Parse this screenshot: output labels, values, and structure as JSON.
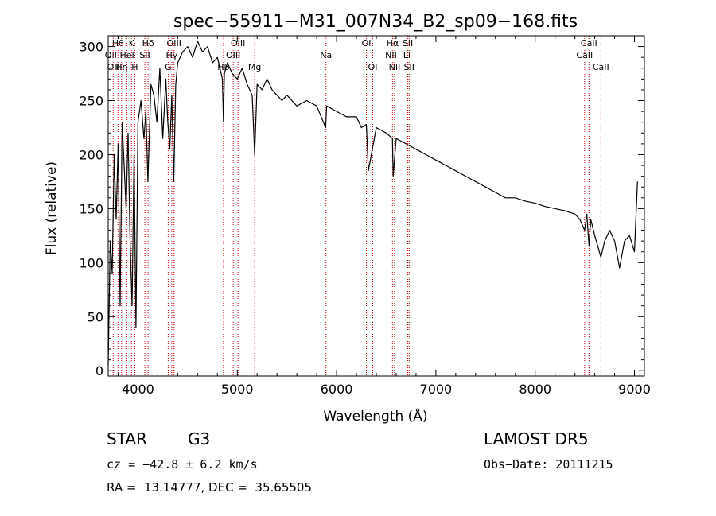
{
  "chart_data": {
    "type": "line",
    "title": "spec−55911−M31_007N34_B2_sp09−168.fits",
    "xlabel": "Wavelength (Å)",
    "ylabel": "Flux (relative)",
    "xlim": [
      3700,
      9100
    ],
    "ylim": [
      -5,
      310
    ],
    "x_ticks": [
      4000,
      5000,
      6000,
      7000,
      8000,
      9000
    ],
    "y_ticks": [
      0,
      50,
      100,
      150,
      200,
      250,
      300
    ],
    "grid": false,
    "line_color": "#000000",
    "marker_color": "#cc0000",
    "series": [
      {
        "x": [
          3700,
          3720,
          3740,
          3760,
          3780,
          3800,
          3820,
          3840,
          3860,
          3880,
          3900,
          3920,
          3940,
          3960,
          3980,
          4000,
          4030,
          4060,
          4080,
          4100,
          4130,
          4160,
          4190,
          4220,
          4250,
          4280,
          4300,
          4320,
          4340,
          4360,
          4380,
          4400,
          4450,
          4500,
          4550,
          4600,
          4650,
          4700,
          4750,
          4800,
          4850,
          4861,
          4870,
          4900,
          4950,
          5000,
          5050,
          5100,
          5150,
          5175,
          5200,
          5250,
          5300,
          5350,
          5400,
          5450,
          5500,
          5600,
          5700,
          5800,
          5890,
          5900,
          6000,
          6100,
          6200,
          6250,
          6300,
          6320,
          6400,
          6500,
          6563,
          6570,
          6600,
          6700,
          6800,
          6900,
          7000,
          7100,
          7200,
          7300,
          7400,
          7500,
          7600,
          7700,
          7800,
          7900,
          8000,
          8100,
          8200,
          8300,
          8400,
          8450,
          8498,
          8520,
          8542,
          8560,
          8600,
          8662,
          8700,
          8750,
          8800,
          8850,
          8900,
          8950,
          9000,
          9030
        ],
        "y": [
          5,
          120,
          90,
          200,
          140,
          210,
          60,
          230,
          190,
          150,
          220,
          120,
          60,
          200,
          40,
          230,
          250,
          215,
          240,
          175,
          265,
          255,
          230,
          280,
          215,
          270,
          230,
          205,
          255,
          175,
          265,
          285,
          295,
          300,
          290,
          305,
          295,
          300,
          285,
          290,
          270,
          230,
          275,
          285,
          275,
          270,
          280,
          265,
          255,
          200,
          265,
          260,
          270,
          260,
          255,
          250,
          255,
          245,
          250,
          245,
          225,
          245,
          240,
          235,
          235,
          225,
          228,
          185,
          225,
          220,
          215,
          180,
          215,
          210,
          205,
          200,
          195,
          190,
          185,
          180,
          175,
          170,
          165,
          160,
          160,
          157,
          155,
          152,
          150,
          148,
          145,
          140,
          130,
          145,
          115,
          140,
          125,
          105,
          120,
          130,
          120,
          95,
          120,
          125,
          110,
          175
        ]
      }
    ],
    "lines": [
      {
        "label": "Hθ",
        "x": 3798,
        "row": 1
      },
      {
        "label": "OII",
        "x": 3727,
        "row": 2
      },
      {
        "label": "OII",
        "x": 3750,
        "row": 3
      },
      {
        "label": "Hη",
        "x": 3835,
        "row": 3
      },
      {
        "label": "HeI",
        "x": 3889,
        "row": 2
      },
      {
        "label": "K",
        "x": 3934,
        "row": 1
      },
      {
        "label": "H",
        "x": 3968,
        "row": 3
      },
      {
        "label": "SII",
        "x": 4069,
        "row": 2
      },
      {
        "label": "Hδ",
        "x": 4102,
        "row": 1
      },
      {
        "label": "OIII",
        "x": 4363,
        "row": 1
      },
      {
        "label": "Hγ",
        "x": 4340,
        "row": 2
      },
      {
        "label": "G",
        "x": 4304,
        "row": 3
      },
      {
        "label": "OIII",
        "x": 5007,
        "row": 1
      },
      {
        "label": "OIII",
        "x": 4959,
        "row": 2
      },
      {
        "label": "Hβ",
        "x": 4861,
        "row": 3
      },
      {
        "label": "Mg",
        "x": 5175,
        "row": 3
      },
      {
        "label": "Na",
        "x": 5893,
        "row": 2
      },
      {
        "label": "OI",
        "x": 6300,
        "row": 1
      },
      {
        "label": "OI",
        "x": 6364,
        "row": 3
      },
      {
        "label": "Hα",
        "x": 6563,
        "row": 1
      },
      {
        "label": "NII",
        "x": 6548,
        "row": 2
      },
      {
        "label": "NII",
        "x": 6584,
        "row": 3
      },
      {
        "label": "SII",
        "x": 6717,
        "row": 1
      },
      {
        "label": "Li",
        "x": 6708,
        "row": 2
      },
      {
        "label": "SII",
        "x": 6731,
        "row": 3
      },
      {
        "label": "CaII",
        "x": 8542,
        "row": 1
      },
      {
        "label": "CaII",
        "x": 8498,
        "row": 2
      },
      {
        "label": "CaII",
        "x": 8662,
        "row": 3
      }
    ]
  },
  "info": {
    "class_label": "STAR",
    "subclass": "G3",
    "cz_text": "cz = −42.8 ± 6.2 km/s",
    "coords_text": "RA =  13.14777, DEC =  35.65505",
    "survey": "LAMOST DR5",
    "obs_date": "Obs−Date: 20111215"
  }
}
